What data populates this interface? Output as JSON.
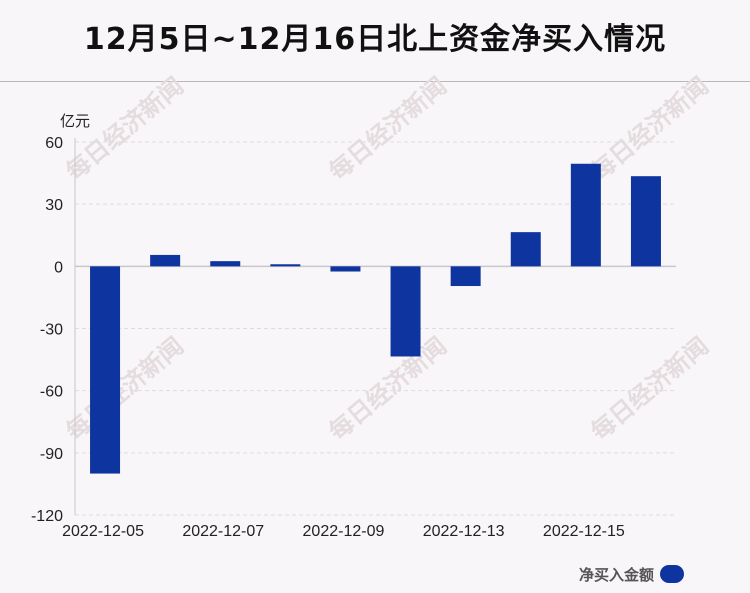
{
  "title": "12月5日~12月16日北上资金净买入情况",
  "watermark": "每日经济新闻",
  "chart_data": {
    "type": "bar",
    "unit_label": "亿元",
    "categories": [
      "2022-12-05",
      "2022-12-06",
      "2022-12-07",
      "2022-12-08",
      "2022-12-09",
      "2022-12-12",
      "2022-12-13",
      "2022-12-14",
      "2022-12-15",
      "2022-12-16"
    ],
    "x_tick_labels": [
      "2022-12-05",
      "2022-12-07",
      "2022-12-09",
      "2022-12-13",
      "2022-12-15"
    ],
    "y_ticks": [
      60,
      30,
      0,
      -30,
      -60,
      -90,
      -120
    ],
    "ylim": [
      -120,
      60
    ],
    "series": [
      {
        "name": "净买入金额",
        "color": "#0e34a0",
        "values": [
          -100,
          5.5,
          2.5,
          1.0,
          -2.5,
          -43.5,
          -9.5,
          16.5,
          49.5,
          43.5
        ]
      }
    ],
    "grid": true,
    "legend_position": "bottom-right"
  }
}
